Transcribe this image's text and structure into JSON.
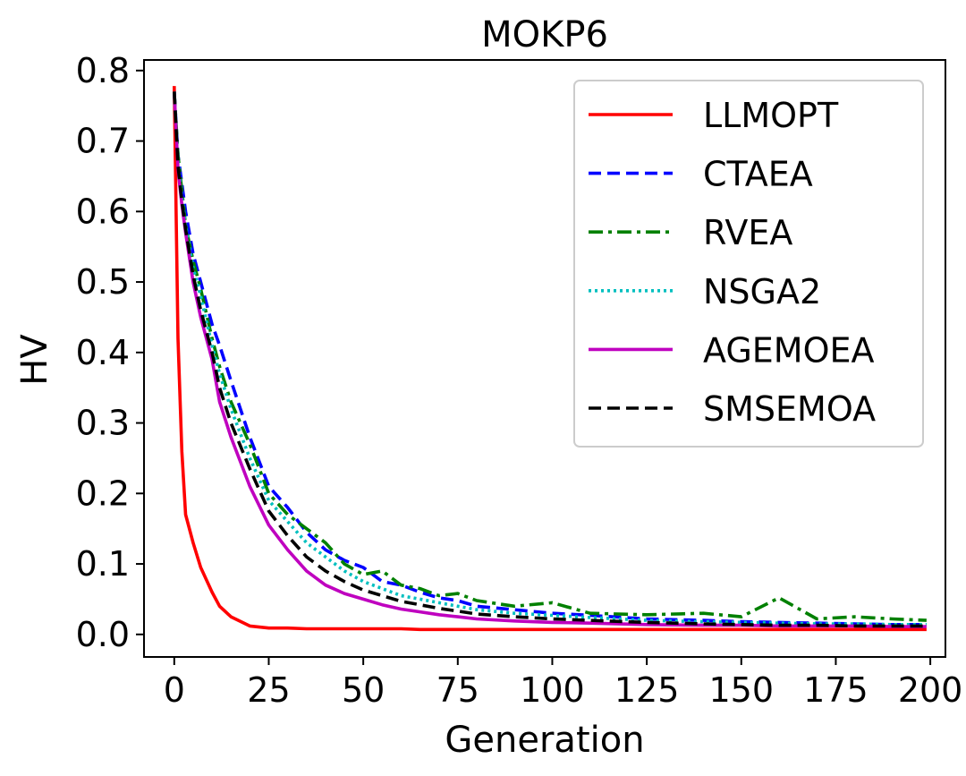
{
  "chart_data": {
    "type": "line",
    "title": "MOKP6",
    "xlabel": "Generation",
    "ylabel": "HV",
    "xlim": [
      -8,
      204
    ],
    "ylim": [
      -0.032,
      0.815
    ],
    "xticks": [
      0,
      25,
      50,
      75,
      100,
      125,
      150,
      175,
      200
    ],
    "xtick_labels": [
      "0",
      "25",
      "50",
      "75",
      "100",
      "125",
      "150",
      "175",
      "200"
    ],
    "yticks": [
      0.0,
      0.1,
      0.2,
      0.3,
      0.4,
      0.5,
      0.6,
      0.7,
      0.8
    ],
    "ytick_labels": [
      "0.0",
      "0.1",
      "0.2",
      "0.3",
      "0.4",
      "0.5",
      "0.6",
      "0.7",
      "0.8"
    ],
    "grid": false,
    "legend_position": "upper-right",
    "x": [
      0,
      1,
      2,
      3,
      5,
      7,
      10,
      12,
      15,
      20,
      25,
      30,
      35,
      40,
      45,
      50,
      55,
      60,
      65,
      70,
      75,
      80,
      90,
      100,
      110,
      125,
      140,
      150,
      160,
      170,
      180,
      190,
      199
    ],
    "series": [
      {
        "name": "LLMOPT",
        "color": "#ff0000",
        "dash": "solid",
        "values": [
          0.778,
          0.42,
          0.26,
          0.17,
          0.13,
          0.095,
          0.06,
          0.04,
          0.025,
          0.012,
          0.009,
          0.009,
          0.008,
          0.008,
          0.008,
          0.008,
          0.008,
          0.008,
          0.007,
          0.007,
          0.007,
          0.007,
          0.007,
          0.007,
          0.007,
          0.007,
          0.007,
          0.007,
          0.007,
          0.007,
          0.007,
          0.007,
          0.007
        ]
      },
      {
        "name": "CTAEA",
        "color": "#0000ff",
        "dash": "dashed",
        "values": [
          0.77,
          0.68,
          0.64,
          0.6,
          0.54,
          0.5,
          0.44,
          0.41,
          0.36,
          0.28,
          0.21,
          0.18,
          0.145,
          0.12,
          0.105,
          0.095,
          0.075,
          0.07,
          0.06,
          0.052,
          0.048,
          0.04,
          0.035,
          0.03,
          0.027,
          0.022,
          0.02,
          0.018,
          0.017,
          0.016,
          0.015,
          0.014,
          0.014
        ]
      },
      {
        "name": "RVEA",
        "color": "#008000",
        "dash": "dashdot",
        "values": [
          0.77,
          0.68,
          0.63,
          0.58,
          0.53,
          0.49,
          0.42,
          0.38,
          0.33,
          0.27,
          0.2,
          0.17,
          0.15,
          0.13,
          0.1,
          0.085,
          0.09,
          0.07,
          0.065,
          0.055,
          0.058,
          0.048,
          0.04,
          0.045,
          0.03,
          0.028,
          0.03,
          0.025,
          0.052,
          0.022,
          0.025,
          0.022,
          0.02
        ]
      },
      {
        "name": "NSGA2",
        "color": "#00bfbf",
        "dash": "dotted",
        "values": [
          0.77,
          0.67,
          0.62,
          0.58,
          0.52,
          0.48,
          0.41,
          0.37,
          0.32,
          0.25,
          0.19,
          0.16,
          0.13,
          0.11,
          0.09,
          0.075,
          0.065,
          0.055,
          0.05,
          0.045,
          0.04,
          0.035,
          0.03,
          0.027,
          0.024,
          0.02,
          0.018,
          0.017,
          0.016,
          0.015,
          0.015,
          0.014,
          0.014
        ]
      },
      {
        "name": "AGEMOEA",
        "color": "#bf00bf",
        "dash": "solid",
        "values": [
          0.77,
          0.66,
          0.61,
          0.57,
          0.5,
          0.45,
          0.39,
          0.33,
          0.28,
          0.21,
          0.155,
          0.12,
          0.09,
          0.07,
          0.058,
          0.05,
          0.042,
          0.036,
          0.032,
          0.028,
          0.025,
          0.022,
          0.019,
          0.017,
          0.016,
          0.014,
          0.013,
          0.013,
          0.012,
          0.012,
          0.012,
          0.011,
          0.011
        ]
      },
      {
        "name": "SMSEMOA",
        "color": "#000000",
        "dash": "dashed",
        "values": [
          0.77,
          0.665,
          0.615,
          0.575,
          0.51,
          0.46,
          0.4,
          0.35,
          0.3,
          0.235,
          0.175,
          0.14,
          0.11,
          0.09,
          0.075,
          0.063,
          0.055,
          0.047,
          0.042,
          0.037,
          0.033,
          0.029,
          0.025,
          0.022,
          0.02,
          0.017,
          0.015,
          0.014,
          0.013,
          0.013,
          0.012,
          0.012,
          0.012
        ]
      }
    ]
  }
}
